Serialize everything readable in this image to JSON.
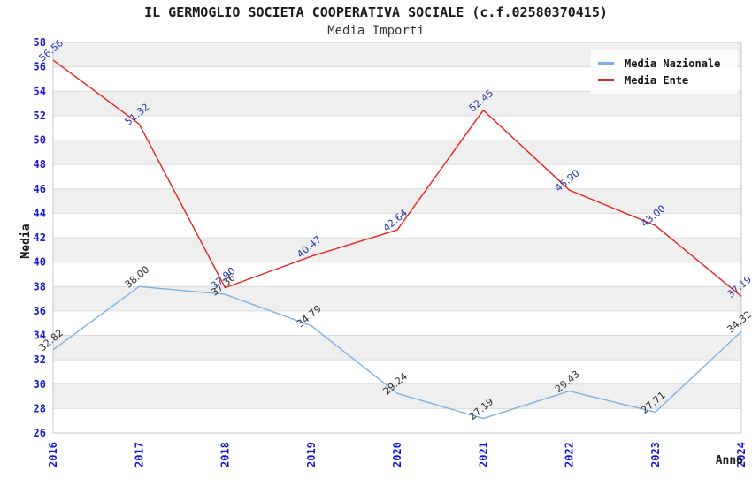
{
  "header": {
    "title": "IL GERMOGLIO SOCIETA COOPERATIVA SOCIALE (c.f.02580370415)",
    "subtitle": "Media Importi"
  },
  "chart_data": {
    "type": "line",
    "x": [
      "2016",
      "2017",
      "2018",
      "2019",
      "2020",
      "2021",
      "2022",
      "2023",
      "2024"
    ],
    "xlabel": "Anno",
    "ylabel": "Media",
    "ylim": [
      26,
      58
    ],
    "yticks": [
      58,
      56,
      54,
      52,
      50,
      48,
      46,
      44,
      42,
      40,
      38,
      36,
      34,
      32,
      30,
      28,
      26
    ],
    "grid": "horizontal-bands-alternating",
    "legend_position": "top-right",
    "series": [
      {
        "name": "Media Nazionale",
        "color": "#7db1e3",
        "label_color": "#2b2b2b",
        "values": [
          32.82,
          38.0,
          37.36,
          34.79,
          29.24,
          27.19,
          29.43,
          27.71,
          34.32
        ]
      },
      {
        "name": "Media Ente",
        "color": "#e62222",
        "label_color": "#2233aa",
        "values": [
          56.56,
          51.32,
          37.9,
          40.47,
          42.64,
          52.45,
          45.9,
          43.0,
          37.19
        ]
      }
    ],
    "colors": {
      "tick_label": "#1414dd",
      "axis_title": "#1a1a1a",
      "band_fill": "#efefef",
      "grid_line": "#dcdcdc",
      "plot_border": "#c8c8c8"
    }
  }
}
